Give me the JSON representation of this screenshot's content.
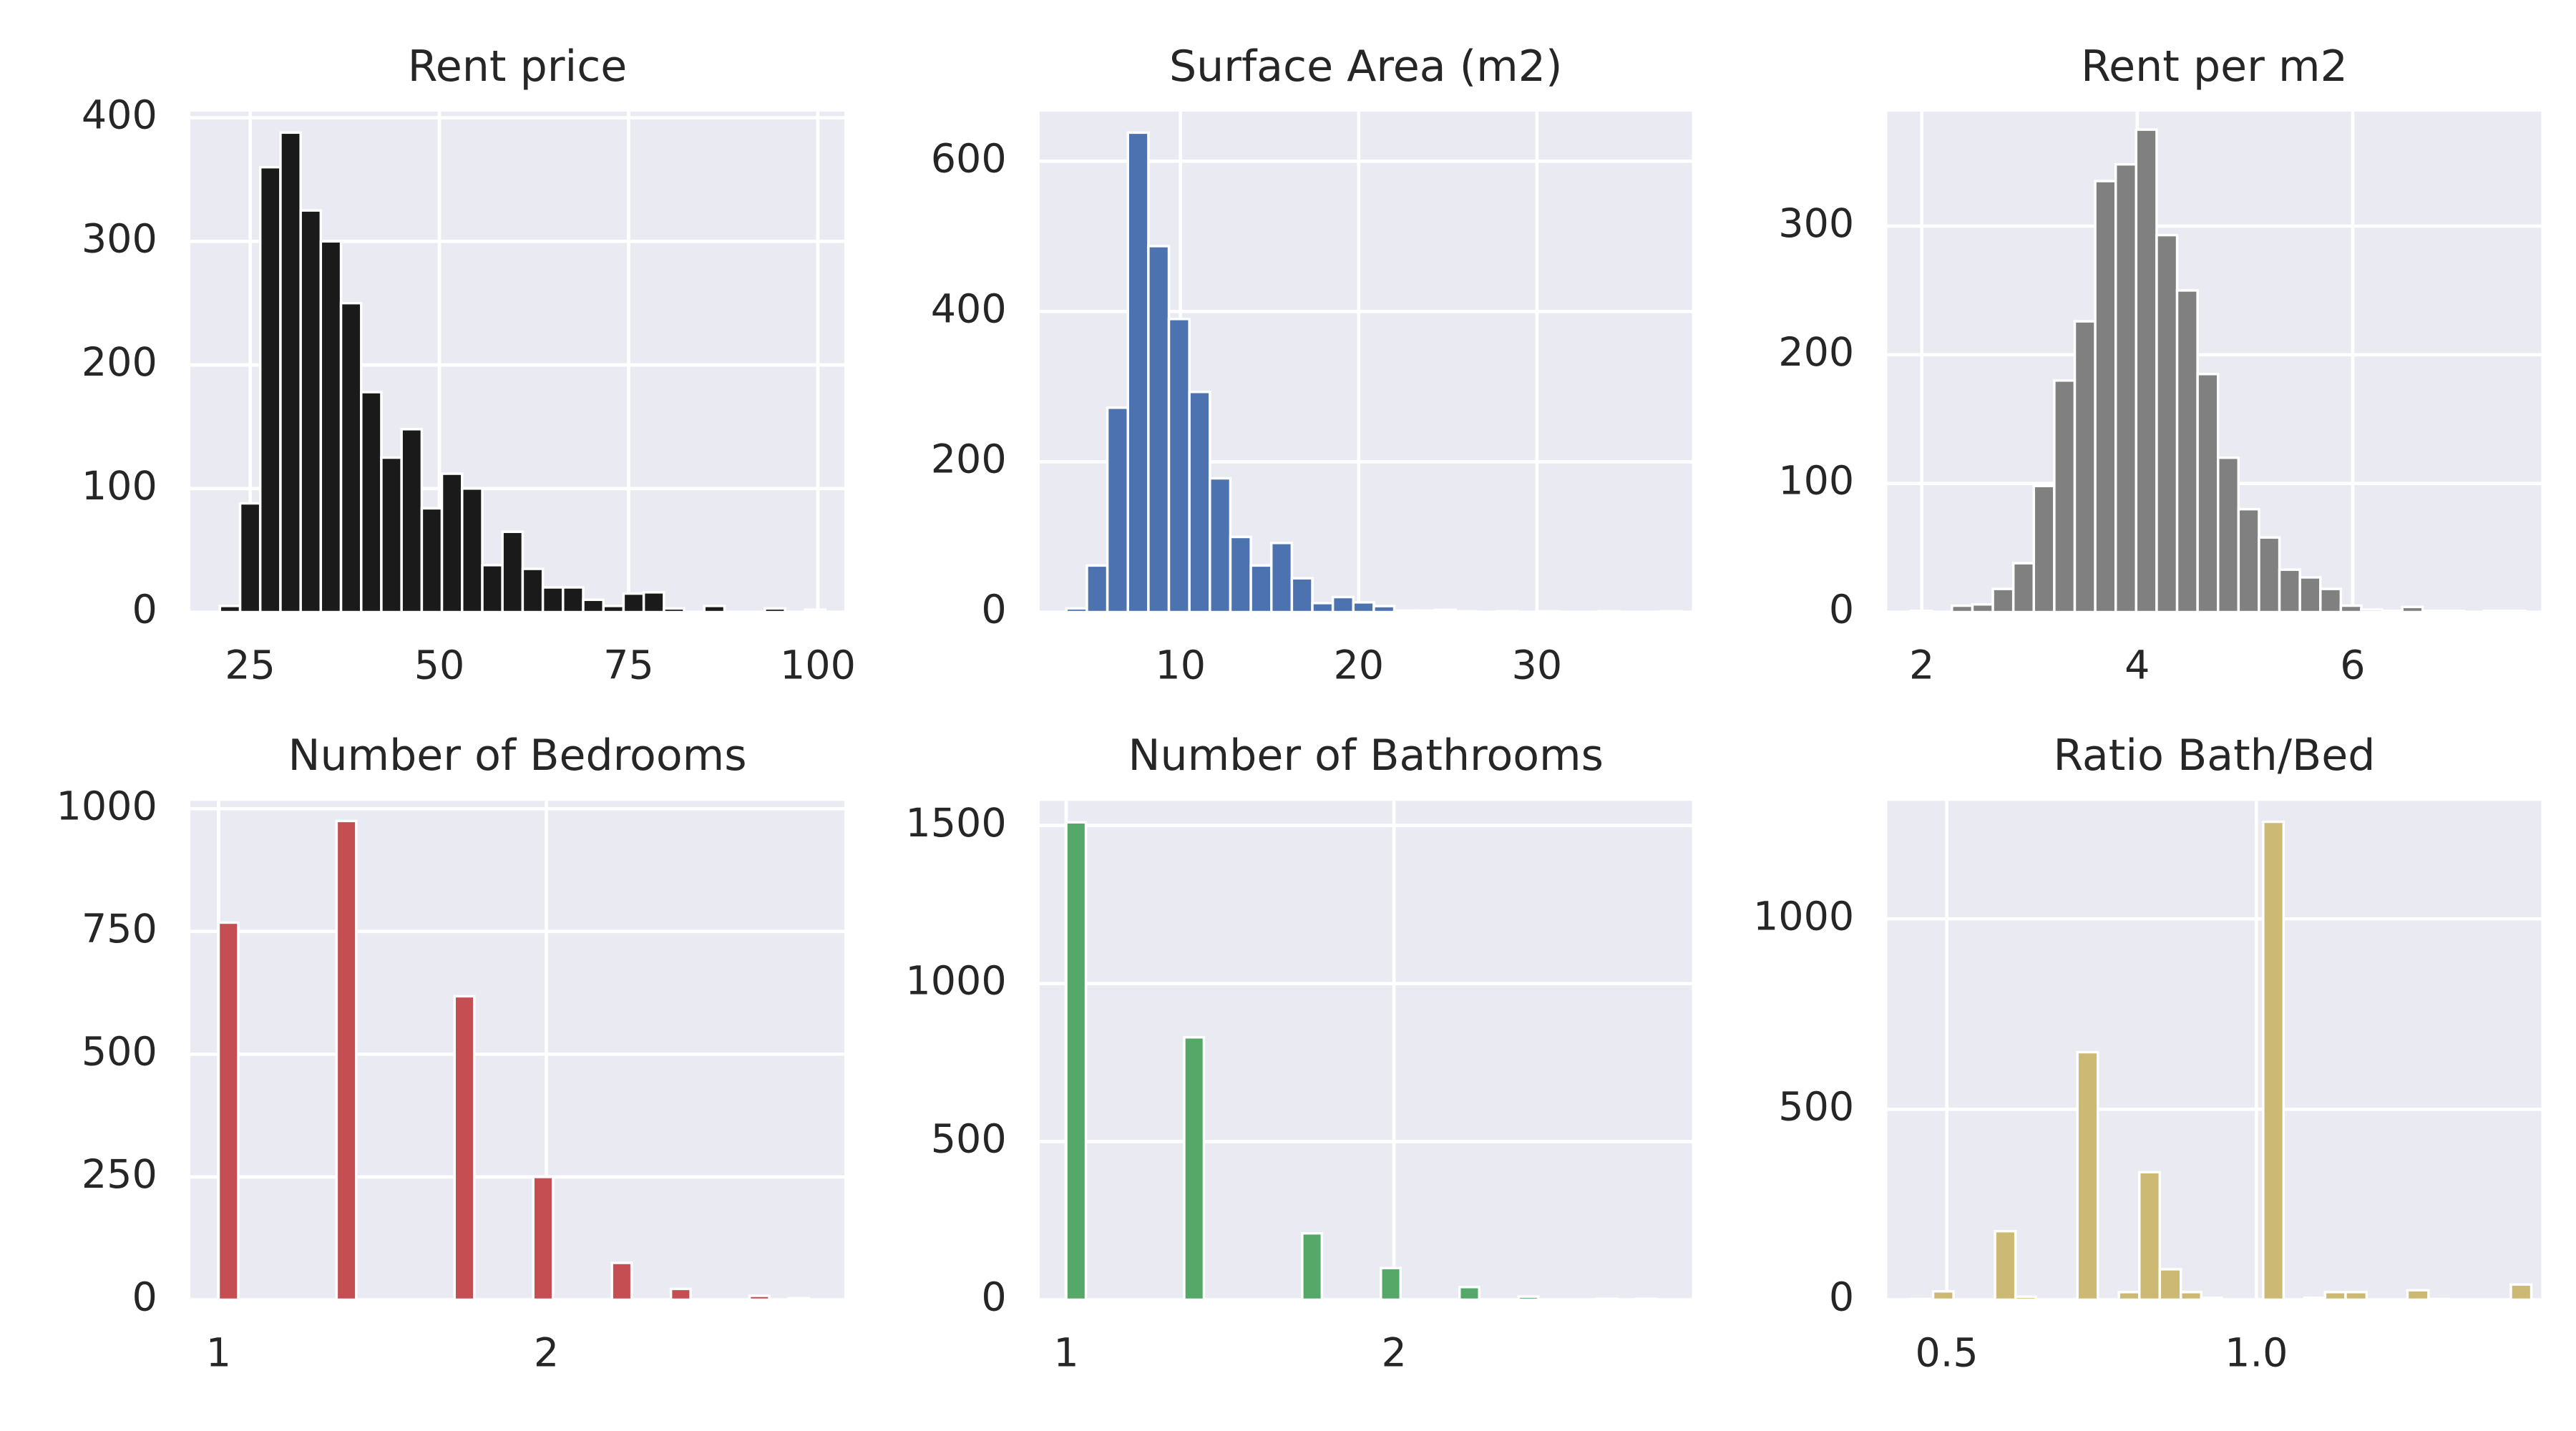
{
  "chart_data": [
    {
      "type": "histogram",
      "title": "Rent price",
      "color": "#1a1a1a",
      "grid": true,
      "bins": [
        21,
        23.67,
        26.33,
        29,
        31.67,
        34.33,
        37,
        39.67,
        42.33,
        45,
        47.67,
        50.33,
        53,
        55.67,
        58.33,
        61,
        63.67,
        66.33,
        69,
        71.67,
        74.33,
        77,
        79.67,
        82.33,
        85,
        87.67,
        90.33,
        93,
        95.67,
        98.33,
        101
      ],
      "values": [
        5,
        88,
        360,
        388,
        325,
        300,
        250,
        178,
        125,
        148,
        84,
        112,
        100,
        38,
        65,
        35,
        20,
        20,
        10,
        5,
        15,
        16,
        3,
        0,
        5,
        0,
        0,
        3,
        0,
        2
      ],
      "xlim": [
        17.1,
        103.5
      ],
      "ylim": [
        0,
        405
      ],
      "xticks": [
        25,
        50,
        75,
        100
      ],
      "yticks": [
        0,
        100,
        200,
        300,
        400
      ]
    },
    {
      "type": "histogram",
      "title": "Surface Area (m2)",
      "color": "#4c72b0",
      "grid": true,
      "bins": [
        3.6,
        4.75,
        5.9,
        7.05,
        8.2,
        9.35,
        10.5,
        11.65,
        12.8,
        13.95,
        15.1,
        16.25,
        17.4,
        18.55,
        19.7,
        20.85,
        22,
        23.15,
        24.3,
        25.45,
        26.6,
        27.75,
        28.9,
        30.05,
        31.2,
        32.35,
        33.5,
        34.65,
        35.8,
        36.95,
        38.1
      ],
      "values": [
        5,
        62,
        272,
        638,
        487,
        390,
        293,
        178,
        100,
        62,
        92,
        45,
        12,
        20,
        13,
        8,
        2,
        2,
        3,
        1,
        0,
        1,
        0,
        1,
        0,
        0,
        1,
        0,
        0,
        1
      ],
      "xlim": [
        2.1,
        38.7
      ],
      "ylim": [
        0,
        666
      ],
      "xticks": [
        10,
        20,
        30
      ],
      "yticks": [
        0,
        200,
        400,
        600
      ]
    },
    {
      "type": "histogram",
      "title": "Rent per m2",
      "color": "#808080",
      "grid": true,
      "bins": [
        1.9,
        2.09,
        2.28,
        2.47,
        2.66,
        2.85,
        3.04,
        3.23,
        3.42,
        3.61,
        3.8,
        3.99,
        4.18,
        4.37,
        4.56,
        4.75,
        4.94,
        5.13,
        5.32,
        5.51,
        5.7,
        5.89,
        6.08,
        6.27,
        6.46,
        6.65,
        6.84,
        7.03,
        7.22,
        7.41,
        7.6
      ],
      "values": [
        1,
        0,
        5,
        6,
        18,
        38,
        98,
        180,
        226,
        335,
        348,
        375,
        293,
        250,
        185,
        120,
        80,
        58,
        33,
        27,
        18,
        5,
        2,
        1,
        4,
        1,
        1,
        0,
        1,
        1
      ],
      "xlim": [
        1.68,
        7.75
      ],
      "ylim": [
        0,
        389
      ],
      "xticks": [
        2,
        4,
        6
      ],
      "yticks": [
        0,
        100,
        200,
        300
      ]
    },
    {
      "type": "histogram",
      "title": "Number of Bedrooms",
      "color": "#c44e52",
      "grid": true,
      "bins": [
        1,
        1.06,
        1.12,
        1.18,
        1.24,
        1.3,
        1.36,
        1.42,
        1.48,
        1.54,
        1.6,
        1.66,
        1.72,
        1.78,
        1.84,
        1.9,
        1.96,
        2.02,
        2.08,
        2.14,
        2.2,
        2.26,
        2.32,
        2.38,
        2.44,
        2.5,
        2.56,
        2.62,
        2.68,
        2.74,
        2.8
      ],
      "values": [
        768,
        0,
        0,
        0,
        0,
        0,
        975,
        0,
        0,
        0,
        0,
        0,
        618,
        0,
        0,
        0,
        250,
        0,
        0,
        0,
        75,
        0,
        0,
        22,
        0,
        0,
        0,
        8,
        0,
        3
      ],
      "xlim": [
        0.914,
        2.909
      ],
      "ylim": [
        0,
        1016
      ],
      "xticks": [
        1,
        2
      ],
      "yticks": [
        0,
        250,
        500,
        750,
        1000
      ]
    },
    {
      "type": "histogram",
      "title": "Number of Bathrooms",
      "color": "#55a868",
      "grid": true,
      "bins": [
        1,
        1.06,
        1.12,
        1.18,
        1.24,
        1.3,
        1.36,
        1.42,
        1.48,
        1.54,
        1.6,
        1.66,
        1.72,
        1.78,
        1.84,
        1.9,
        1.96,
        2.02,
        2.08,
        2.14,
        2.2,
        2.26,
        2.32,
        2.38,
        2.44,
        2.5,
        2.56,
        2.62,
        2.68,
        2.74,
        2.8
      ],
      "values": [
        1510,
        0,
        0,
        0,
        0,
        0,
        830,
        0,
        0,
        0,
        0,
        0,
        210,
        0,
        0,
        0,
        100,
        0,
        0,
        0,
        40,
        0,
        0,
        10,
        0,
        0,
        0,
        3,
        0,
        3
      ],
      "xlim": [
        0.919,
        2.909
      ],
      "ylim": [
        0,
        1578
      ],
      "xticks": [
        1,
        2
      ],
      "yticks": [
        0,
        500,
        1000,
        1500
      ]
    },
    {
      "type": "histogram",
      "title": "Ratio Bath/Bed",
      "color": "#ccb974",
      "grid": true,
      "bins": [
        0.444,
        0.478,
        0.511,
        0.544,
        0.578,
        0.611,
        0.644,
        0.678,
        0.711,
        0.744,
        0.778,
        0.811,
        0.844,
        0.878,
        0.911,
        0.944,
        0.978,
        1.011,
        1.044,
        1.078,
        1.111,
        1.144,
        1.178,
        1.211,
        1.244,
        1.278,
        1.311,
        1.344,
        1.378,
        1.411,
        1.444
      ],
      "values": [
        2,
        22,
        0,
        0,
        180,
        8,
        0,
        0,
        650,
        0,
        20,
        335,
        80,
        20,
        5,
        0,
        0,
        1255,
        0,
        5,
        20,
        20,
        0,
        0,
        25,
        2,
        0,
        0,
        0,
        40
      ],
      "xlim": [
        0.404,
        1.46
      ],
      "ylim": [
        0,
        1310
      ],
      "xticks": [
        0.5,
        {
          "value": 1,
          "label": "1.0"
        }
      ],
      "yticks": [
        0,
        500,
        1000
      ]
    }
  ]
}
